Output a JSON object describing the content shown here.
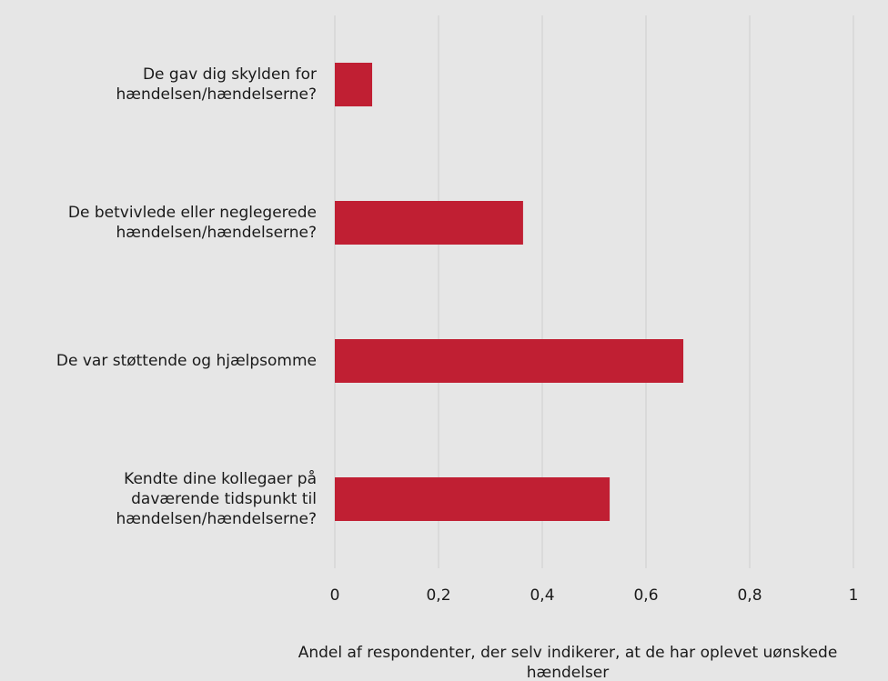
{
  "chart_data": {
    "type": "bar",
    "orientation": "horizontal",
    "categories": [
      [
        "De gav dig skylden for",
        "hændelsen/hændelserne?"
      ],
      [
        "De betvivlede eller neglegerede",
        "hændelsen/hændelserne?"
      ],
      [
        "De var støttende og hjælpsomme"
      ],
      [
        "Kendte dine kollegaer på",
        "daværende tidspunkt til",
        "hændelsen/hændelserne?"
      ]
    ],
    "values": [
      0.072,
      0.363,
      0.672,
      0.53
    ],
    "color": "#c01f33",
    "xlim": [
      0,
      1
    ],
    "xticks": [
      0,
      {
        "value": 0.2,
        "label": "0,2"
      },
      {
        "value": 0.4,
        "label": "0,4"
      },
      {
        "value": 0.6,
        "label": "0,6"
      },
      {
        "value": 0.8,
        "label": "0,8"
      },
      1
    ],
    "xlabel": [
      "Andel af respondenter, der selv indikerer, at de har oplevet uønskede",
      "hændelser"
    ],
    "grid": true
  }
}
